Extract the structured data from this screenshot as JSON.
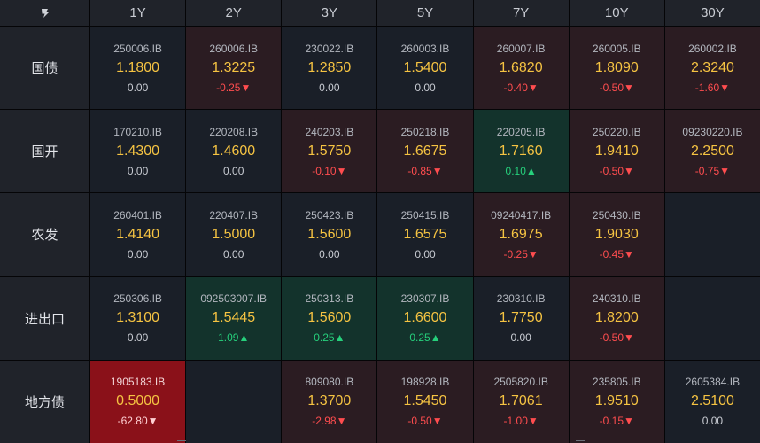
{
  "corner_icon": "logo-icon",
  "colors": {
    "up": "#26d07c",
    "down": "#ff4d4f",
    "yield": "#f5c342",
    "strong_down_bg": "#8a1119"
  },
  "columns": [
    "1Y",
    "2Y",
    "3Y",
    "5Y",
    "7Y",
    "10Y",
    "30Y"
  ],
  "rows": [
    {
      "label": "国债",
      "cells": [
        {
          "code": "250006.IB",
          "yield": "1.1800",
          "change": "0.00",
          "dir": "neutral"
        },
        {
          "code": "260006.IB",
          "yield": "1.3225",
          "change": "-0.25▼",
          "dir": "down"
        },
        {
          "code": "230022.IB",
          "yield": "1.2850",
          "change": "0.00",
          "dir": "neutral"
        },
        {
          "code": "260003.IB",
          "yield": "1.5400",
          "change": "0.00",
          "dir": "neutral"
        },
        {
          "code": "260007.IB",
          "yield": "1.6820",
          "change": "-0.40▼",
          "dir": "down"
        },
        {
          "code": "260005.IB",
          "yield": "1.8090",
          "change": "-0.50▼",
          "dir": "down"
        },
        {
          "code": "260002.IB",
          "yield": "2.3240",
          "change": "-1.60▼",
          "dir": "down"
        }
      ]
    },
    {
      "label": "国开",
      "cells": [
        {
          "code": "170210.IB",
          "yield": "1.4300",
          "change": "0.00",
          "dir": "neutral"
        },
        {
          "code": "220208.IB",
          "yield": "1.4600",
          "change": "0.00",
          "dir": "neutral"
        },
        {
          "code": "240203.IB",
          "yield": "1.5750",
          "change": "-0.10▼",
          "dir": "down"
        },
        {
          "code": "250218.IB",
          "yield": "1.6675",
          "change": "-0.85▼",
          "dir": "down"
        },
        {
          "code": "220205.IB",
          "yield": "1.7160",
          "change": "0.10▲",
          "dir": "up"
        },
        {
          "code": "250220.IB",
          "yield": "1.9410",
          "change": "-0.50▼",
          "dir": "down"
        },
        {
          "code": "09230220.IB",
          "yield": "2.2500",
          "change": "-0.75▼",
          "dir": "down"
        }
      ]
    },
    {
      "label": "农发",
      "cells": [
        {
          "code": "260401.IB",
          "yield": "1.4140",
          "change": "0.00",
          "dir": "neutral"
        },
        {
          "code": "220407.IB",
          "yield": "1.5000",
          "change": "0.00",
          "dir": "neutral"
        },
        {
          "code": "250423.IB",
          "yield": "1.5600",
          "change": "0.00",
          "dir": "neutral"
        },
        {
          "code": "250415.IB",
          "yield": "1.6575",
          "change": "0.00",
          "dir": "neutral"
        },
        {
          "code": "09240417.IB",
          "yield": "1.6975",
          "change": "-0.25▼",
          "dir": "down"
        },
        {
          "code": "250430.IB",
          "yield": "1.9030",
          "change": "-0.45▼",
          "dir": "down"
        },
        null
      ]
    },
    {
      "label": "进出口",
      "cells": [
        {
          "code": "250306.IB",
          "yield": "1.3100",
          "change": "0.00",
          "dir": "neutral"
        },
        {
          "code": "092503007.IB",
          "yield": "1.5445",
          "change": "1.09▲",
          "dir": "up"
        },
        {
          "code": "250313.IB",
          "yield": "1.5600",
          "change": "0.25▲",
          "dir": "up"
        },
        {
          "code": "230307.IB",
          "yield": "1.6600",
          "change": "0.25▲",
          "dir": "up"
        },
        {
          "code": "230310.IB",
          "yield": "1.7750",
          "change": "0.00",
          "dir": "neutral"
        },
        {
          "code": "240310.IB",
          "yield": "1.8200",
          "change": "-0.50▼",
          "dir": "down"
        },
        null
      ]
    },
    {
      "label": "地方债",
      "cells": [
        {
          "code": "1905183.IB",
          "yield": "0.5000",
          "change": "-62.80▼",
          "dir": "strong-down"
        },
        null,
        {
          "code": "809080.IB",
          "yield": "1.3700",
          "change": "-2.98▼",
          "dir": "down"
        },
        {
          "code": "198928.IB",
          "yield": "1.5450",
          "change": "-0.50▼",
          "dir": "down"
        },
        {
          "code": "2505820.IB",
          "yield": "1.7061",
          "change": "-1.00▼",
          "dir": "down"
        },
        {
          "code": "235805.IB",
          "yield": "1.9510",
          "change": "-0.15▼",
          "dir": "down"
        },
        {
          "code": "2605384.IB",
          "yield": "2.5100",
          "change": "0.00",
          "dir": "neutral"
        }
      ]
    }
  ]
}
